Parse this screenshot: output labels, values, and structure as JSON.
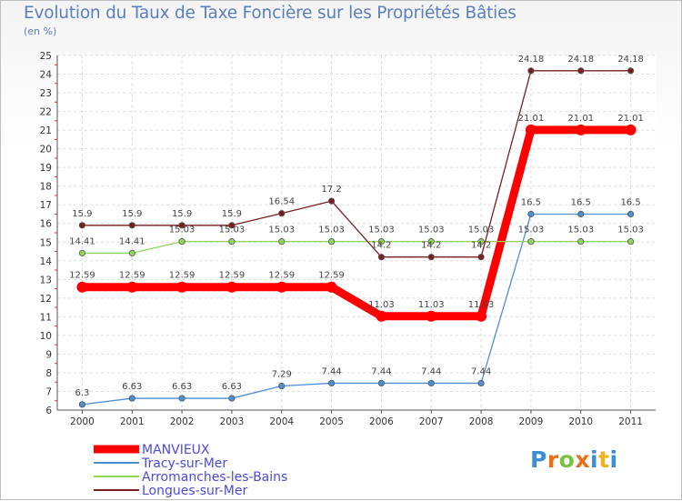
{
  "title": "Evolution du Taux de Taxe Foncière sur les Propriétés Bâties",
  "subtitle": "(en %)",
  "logo_letters": [
    "P",
    "r",
    "o",
    "x",
    "i",
    "t",
    "i"
  ],
  "logo_colors": [
    "#3a8fd6",
    "#e8701a",
    "#7cc242",
    "#e8701a",
    "#3a8fd6",
    "#f0b41e",
    "#3a8fd6"
  ],
  "chart_data": {
    "type": "line",
    "title": "Evolution du Taux de Taxe Foncière sur les Propriétés Bâties",
    "ylabel": "(en %)",
    "xlabel": "",
    "categories": [
      "2000",
      "2001",
      "2002",
      "2003",
      "2004",
      "2005",
      "2006",
      "2007",
      "2008",
      "2009",
      "2010",
      "2011"
    ],
    "ylim": [
      6,
      25
    ],
    "yticks": [
      6,
      7,
      8,
      9,
      10,
      11,
      12,
      13,
      14,
      15,
      16,
      17,
      18,
      19,
      20,
      21,
      22,
      23,
      24,
      25
    ],
    "grid": true,
    "legend_position": "bottom-left",
    "series": [
      {
        "name": "MANVIEUX",
        "color": "#ff0000",
        "values": [
          12.59,
          12.59,
          12.59,
          12.59,
          12.59,
          12.59,
          11.03,
          11.03,
          11.03,
          21.01,
          21.01,
          21.01
        ],
        "labels": [
          "12.59",
          "12.59",
          "12.59",
          "12.59",
          "12.59",
          "12.59",
          "11.03",
          "11.03",
          "11.03",
          "21.01",
          "21.01",
          "21.01"
        ]
      },
      {
        "name": "Tracy-sur-Mer",
        "color": "#4d8fd1",
        "values": [
          6.3,
          6.63,
          6.63,
          6.63,
          7.29,
          7.44,
          7.44,
          7.44,
          7.44,
          16.5,
          16.5,
          16.5
        ],
        "labels": [
          "6.3",
          "6.63",
          "6.63",
          "6.63",
          "7.29",
          "7.44",
          "7.44",
          "7.44",
          "7.44",
          "16.5",
          "16.5",
          "16.5"
        ]
      },
      {
        "name": "Arromanches-les-Bains",
        "color": "#8fd65c",
        "values": [
          14.41,
          14.41,
          15.03,
          15.03,
          15.03,
          15.03,
          15.03,
          15.03,
          15.03,
          15.03,
          15.03,
          15.03
        ],
        "labels": [
          "14.41",
          "14.41",
          "15.03",
          "15.03",
          "15.03",
          "15.03",
          "15.03",
          "15.03",
          "15.03",
          "15.03",
          "15.03",
          "15.03"
        ]
      },
      {
        "name": "Longues-sur-Mer",
        "color": "#7a1f1f",
        "values": [
          15.9,
          15.9,
          15.9,
          15.9,
          16.54,
          17.2,
          14.2,
          14.2,
          14.2,
          24.18,
          24.18,
          24.18
        ],
        "labels": [
          "15.9",
          "15.9",
          "15.9",
          "15.9",
          "16.54",
          "17.2",
          "14.2",
          "14.2",
          "14.2",
          "24.18",
          "24.18",
          "24.18"
        ]
      }
    ]
  }
}
